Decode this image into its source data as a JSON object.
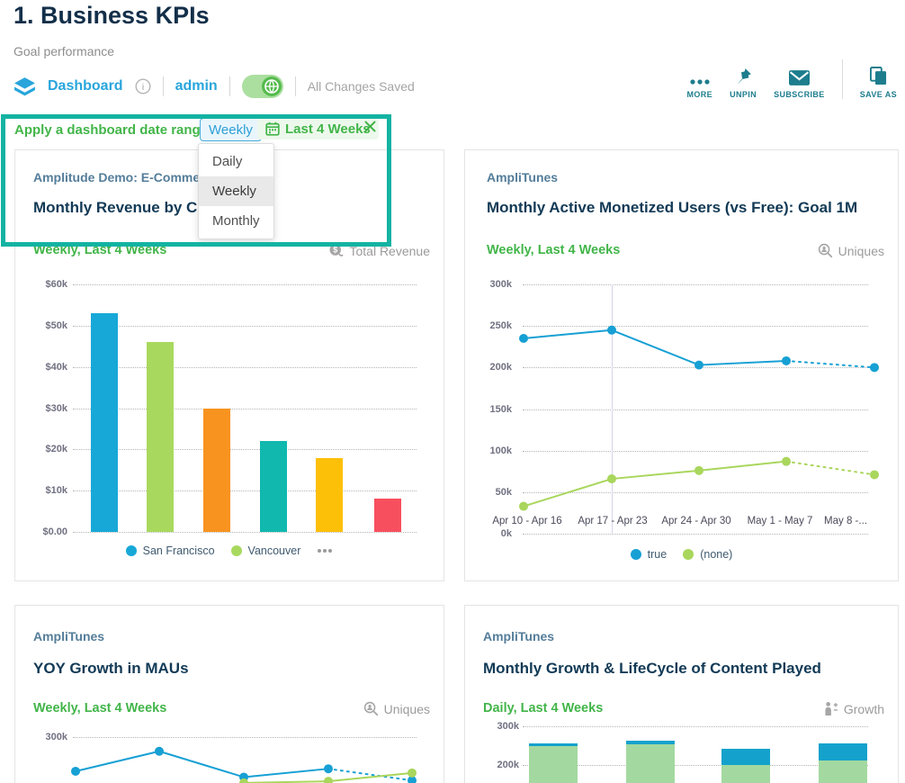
{
  "page": {
    "title": "1. Business KPIs",
    "subtitle": "Goal performance"
  },
  "toolbar": {
    "dashboard_label": "Dashboard",
    "owner_label": "admin",
    "status_label": "All Changes Saved",
    "actions": [
      {
        "id": "more",
        "label": "MORE"
      },
      {
        "id": "unpin",
        "label": "UNPIN"
      },
      {
        "id": "subscribe",
        "label": "SUBSCRIBE"
      },
      {
        "id": "save-as",
        "label": "SAVE AS"
      }
    ]
  },
  "date_range_bar": {
    "prompt": "Apply a dashboard date range",
    "interval": "Weekly",
    "range": "Last 4 Weeks",
    "dropdown_options": [
      "Daily",
      "Weekly",
      "Monthly"
    ],
    "dropdown_selected": "Weekly"
  },
  "cards": [
    {
      "source": "Amplitude Demo: E-Comme",
      "title": "Monthly Revenue by Cit",
      "range": "Weekly, Last 4 Weeks",
      "metric": "Total Revenue",
      "legend": [
        "San Francisco",
        "Vancouver"
      ]
    },
    {
      "source": "AmpliTunes",
      "title": "Monthly Active Monetized Users (vs Free): Goal 1M",
      "range": "Weekly, Last 4 Weeks",
      "metric": "Uniques",
      "legend": [
        "true",
        "(none)"
      ]
    },
    {
      "source": "AmpliTunes",
      "title": "YOY Growth in MAUs",
      "range": "Weekly, Last 4 Weeks",
      "metric": "Uniques"
    },
    {
      "source": "AmpliTunes",
      "title": "Monthly Growth & LifeCycle of Content Played",
      "range": "Daily, Last 4 Weeks",
      "metric": "Growth"
    }
  ],
  "chart_data": [
    {
      "type": "bar",
      "title": "Monthly Revenue by Cit",
      "ylabel": "Total Revenue ($)",
      "ylim": [
        0,
        60000
      ],
      "yticks": [
        "$60k",
        "$50k",
        "$40k",
        "$30k",
        "$20k",
        "$10k",
        "$0.00"
      ],
      "categories": [
        "San Francisco",
        "Vancouver",
        "",
        "",
        "",
        ""
      ],
      "values": [
        53000,
        46000,
        30000,
        22000,
        18000,
        8000
      ],
      "colors": [
        "#17a8d8",
        "#a8d95e",
        "#f8931f",
        "#10b8ae",
        "#fdc008",
        "#f84f5e"
      ],
      "legend_position": "bottom"
    },
    {
      "type": "line",
      "title": "Monthly Active Monetized Users (vs Free): Goal 1M",
      "ylim": [
        0,
        300000
      ],
      "yticks": [
        "300k",
        "250k",
        "200k",
        "150k",
        "100k",
        "50k",
        "0k"
      ],
      "x": [
        "Apr 10 - Apr 16",
        "Apr 17 - Apr 23",
        "Apr 24 - Apr 30",
        "May 1 - May 7",
        "May 8 -..."
      ],
      "series": [
        {
          "name": "true",
          "color": "#17a0d4",
          "values": [
            235000,
            245000,
            203000,
            208000,
            200000
          ],
          "last_segment_dotted": true
        },
        {
          "name": "(none)",
          "color": "#a9d65c",
          "values": [
            33000,
            66000,
            76000,
            87000,
            71000
          ],
          "last_segment_dotted": true
        }
      ],
      "legend_position": "bottom"
    },
    {
      "type": "line",
      "title": "YOY Growth in MAUs",
      "yticks_visible": [
        "300k"
      ],
      "series": [
        {
          "name": "series-blue",
          "color": "#17a0d4",
          "values": [
            259000,
            283000,
            252000,
            262000,
            248000
          ],
          "last_segment_dotted": true
        },
        {
          "name": "series-green",
          "color": "#a9d65c",
          "values": [
            null,
            null,
            245000,
            247000,
            257000
          ]
        }
      ]
    },
    {
      "type": "stacked-bar",
      "title": "Monthly Growth & LifeCycle of Content Played",
      "yticks_visible": [
        "300k",
        "200k"
      ],
      "series": [
        {
          "name": "segment-green",
          "color": "#a3d9a0",
          "values": [
            249000,
            253000,
            199000,
            212000
          ]
        },
        {
          "name": "segment-blue",
          "color": "#14a2cc",
          "values": [
            7000,
            10000,
            42000,
            44000
          ]
        }
      ]
    }
  ],
  "colors": {
    "accent_green": "#42b549",
    "link_blue": "#29a5dc",
    "navy": "#123a56",
    "toolbar_teal": "#1d7d8d",
    "highlight_teal": "#13b3a2"
  }
}
